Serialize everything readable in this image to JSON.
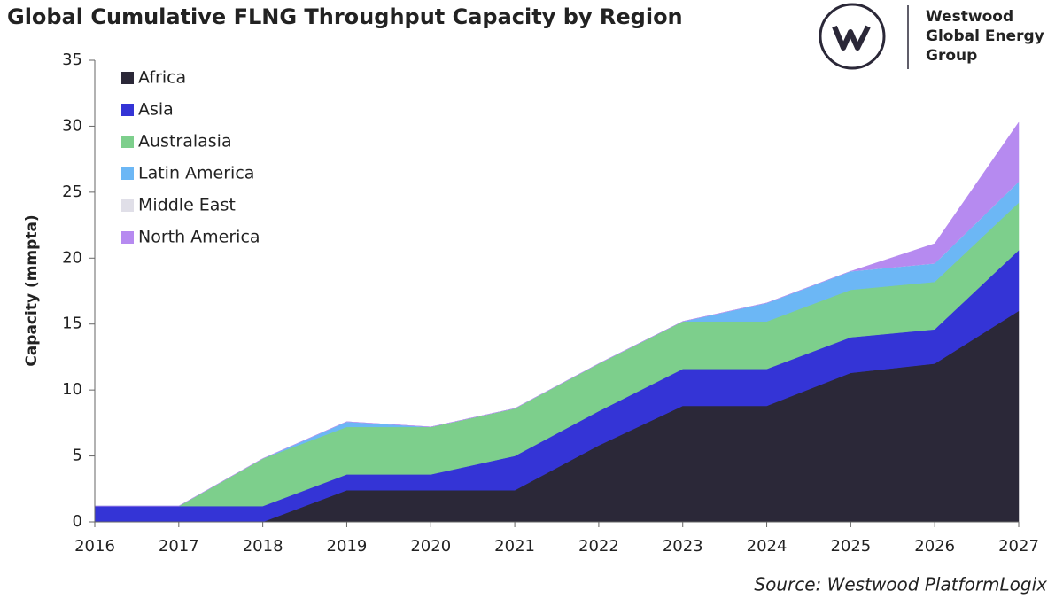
{
  "chart_data": {
    "type": "stacked_area",
    "title": "Global Cumulative FLNG Throughput Capacity by Region",
    "y_label": "Capacity (mmpta)",
    "source": "Source: Westwood PlatformLogix",
    "brand": [
      "Westwood",
      "Global Energy",
      "Group"
    ],
    "x": [
      2016,
      2017,
      2018,
      2019,
      2020,
      2021,
      2022,
      2023,
      2024,
      2025,
      2026,
      2027
    ],
    "xlim": [
      2016,
      2027
    ],
    "xticks": [
      2016,
      2017,
      2018,
      2019,
      2020,
      2021,
      2022,
      2023,
      2024,
      2025,
      2026,
      2027
    ],
    "ylim": [
      0,
      35
    ],
    "yticks": [
      0,
      5,
      10,
      15,
      20,
      25,
      30,
      35
    ],
    "legend": "upper-left",
    "series": [
      {
        "name": "Africa",
        "color": "#2b2838",
        "values": [
          0,
          0,
          0,
          2.4,
          2.4,
          2.4,
          5.8,
          8.8,
          8.8,
          11.3,
          12,
          16
        ]
      },
      {
        "name": "Asia",
        "color": "#3434d6",
        "values": [
          1.2,
          1.2,
          1.2,
          1.2,
          1.2,
          2.6,
          2.6,
          2.8,
          2.8,
          2.7,
          2.6,
          4.6
        ]
      },
      {
        "name": "Australasia",
        "color": "#7dcf8c",
        "values": [
          0,
          0,
          3.6,
          3.6,
          3.6,
          3.6,
          3.6,
          3.6,
          3.6,
          3.6,
          3.6,
          3.6
        ]
      },
      {
        "name": "Latin America",
        "color": "#6cb7f5",
        "values": [
          0,
          0,
          0,
          0.4,
          0,
          0,
          0,
          0,
          1.4,
          1.4,
          1.4,
          1.6
        ]
      },
      {
        "name": "Middle East",
        "color": "#e0dfe8",
        "values": [
          0,
          0,
          0,
          0,
          0,
          0,
          0,
          0,
          0,
          0,
          0,
          0
        ]
      },
      {
        "name": "North America",
        "color": "#b68af0",
        "values": [
          0,
          0,
          0,
          0,
          0,
          0,
          0,
          0,
          0,
          0,
          1.5,
          4.5
        ]
      }
    ]
  }
}
